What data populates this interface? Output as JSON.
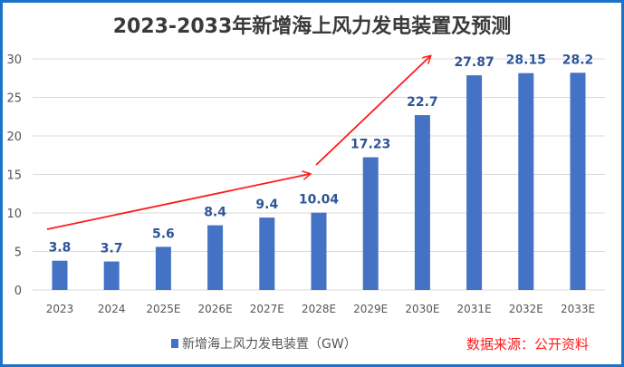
{
  "chart_data": {
    "type": "bar",
    "title": "2023-2033年新增海上风力发电装置及预测",
    "categories": [
      "2023",
      "2024",
      "2025E",
      "2026E",
      "2027E",
      "2028E",
      "2029E",
      "2030E",
      "2031E",
      "2032E",
      "2033E"
    ],
    "series": [
      {
        "name": "新增海上风力发电装置（GW）",
        "values": [
          3.8,
          3.7,
          5.6,
          8.4,
          9.4,
          10.04,
          17.23,
          22.7,
          27.87,
          28.15,
          28.2
        ]
      }
    ],
    "data_labels": [
      "3.8",
      "3.7",
      "5.6",
      "8.4",
      "9.4",
      "10.04",
      "17.23",
      "22.7",
      "27.87",
      "28.15",
      "28.2"
    ],
    "ylim": [
      0,
      30
    ],
    "yticks": [
      0,
      5,
      10,
      15,
      20,
      25,
      30
    ],
    "grid": true,
    "legend": "bottom",
    "colors": {
      "bar": "#4472c4",
      "label": "#2f5597",
      "arrow": "#ff1a1a",
      "grid": "#d9d9d9"
    },
    "annotations": [
      {
        "type": "arrow",
        "description": "trend arrows"
      }
    ]
  },
  "source": "数据来源：公开资料"
}
